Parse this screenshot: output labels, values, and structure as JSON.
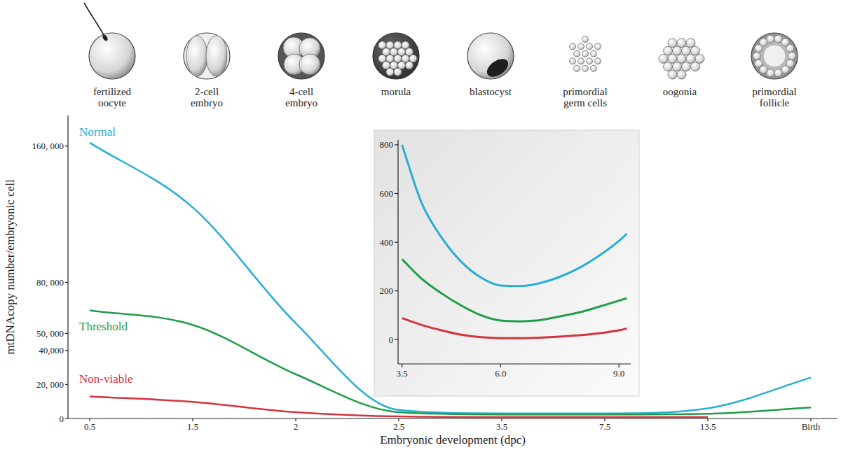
{
  "chart_data": [
    {
      "type": "line",
      "x_label": "Embryonic development (dpc)",
      "y_label": "mtDNAcopy number/embryonic cell",
      "annotations": [
        "fertilized oocyte",
        "2-cell embryo",
        "4-cell embryo",
        "morula",
        "blastocyst",
        "primordial germ cells",
        "oogonia",
        "primordial follicle"
      ],
      "categories": [
        "0.5",
        "1.5",
        "2",
        "2.5",
        "3.5",
        "7.5",
        "13.5",
        "Birth"
      ],
      "series": [
        {
          "name": "Normal",
          "color": "#29aed3",
          "values": [
            162000,
            124000,
            56000,
            5000,
            3000,
            3000,
            6000,
            24000
          ]
        },
        {
          "name": "Threshold",
          "color": "#1f9d48",
          "values": [
            63500,
            55000,
            26000,
            3700,
            2400,
            2400,
            2800,
            6500
          ]
        },
        {
          "name": "Non-viable",
          "color": "#d2343f",
          "values": [
            13000,
            9800,
            3700,
            1200,
            800,
            800,
            800,
            null
          ]
        }
      ],
      "ylim": [
        0,
        178000
      ],
      "yticks": [
        0,
        {
          "value": 20000,
          "label": "20, 000"
        },
        {
          "value": 40000,
          "label": "40,000"
        },
        {
          "value": 50000,
          "label": "50, 000"
        },
        {
          "value": 80000,
          "label": "80, 000"
        },
        {
          "value": 160000,
          "label": "160, 000"
        }
      ],
      "grid": false
    },
    {
      "type": "line",
      "x": [
        3.5,
        4,
        4.5,
        5,
        5.5,
        6,
        6.5,
        7,
        7.5,
        8,
        8.5,
        9,
        9.2
      ],
      "series": [
        {
          "color": "#29aed3",
          "values": [
            800,
            560,
            420,
            320,
            255,
            222,
            220,
            232,
            258,
            295,
            345,
            405,
            435
          ]
        },
        {
          "color": "#1f9d48",
          "values": [
            330,
            250,
            190,
            140,
            100,
            78,
            75,
            80,
            95,
            112,
            135,
            160,
            170
          ]
        },
        {
          "color": "#d2343f",
          "values": [
            88,
            60,
            38,
            20,
            10,
            6,
            6,
            8,
            12,
            18,
            26,
            38,
            45
          ]
        }
      ],
      "xlim": [
        3.4,
        9.3
      ],
      "xticks": [
        3.5,
        {
          "value": 6,
          "label": "6.0"
        },
        {
          "value": 9,
          "label": "9.0"
        }
      ],
      "ylim": [
        -100,
        820
      ],
      "yticks": [
        0,
        200,
        400,
        600,
        800
      ],
      "grid": false
    }
  ]
}
